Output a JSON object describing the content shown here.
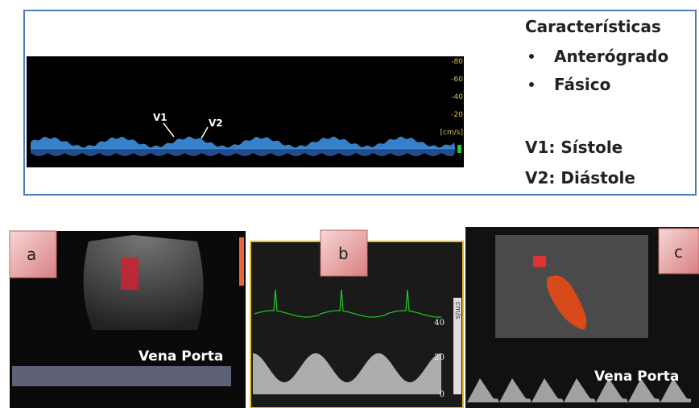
{
  "top_panel": {
    "doppler": {
      "axis_labels": [
        "-80",
        "-60",
        "-40",
        "-20",
        "[cm/s]"
      ],
      "markers": [
        "V1",
        "V2"
      ]
    },
    "heading": "Características",
    "bullets": [
      "Anterógrado",
      "Fásico"
    ],
    "definitions": [
      "V1: Sístole",
      "V2: Diástole"
    ]
  },
  "images": [
    {
      "label": "a",
      "caption": "Vena Porta"
    },
    {
      "label": "b",
      "axis_labels": [
        "40",
        "20",
        "0"
      ],
      "axis_unit": "cm/s"
    },
    {
      "label": "c",
      "caption": "Vena Porta"
    }
  ]
}
